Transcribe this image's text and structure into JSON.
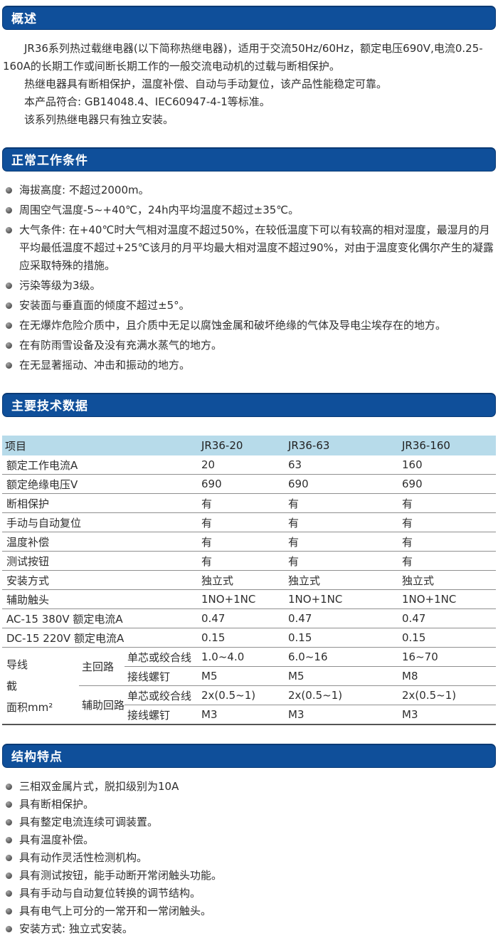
{
  "colors": {
    "banner_bg": "#0f4f9a",
    "banner_border": "#0a3a75",
    "banner_text": "#ffffff",
    "table_header_bg": "#b7dbea",
    "row_border": "#8f8f8f",
    "body_text": "#2e2e2e"
  },
  "sections": {
    "overview": {
      "title": "概述",
      "paragraphs": [
        "JR36系列热过载继电器(以下简称热继电器)，适用于交流50Hz/60Hz，额定电压690V,电流0.25-160A的长期工作或间断长期工作的一般交流电动机的过载与断相保护。",
        "热继电器具有断相保护，温度补偿、自动与手动复位，该产品性能稳定可靠。",
        "本产品符合: GB14048.4、IEC60947-4-1等标准。",
        "该系列热继电器只有独立安装。"
      ]
    },
    "working_conditions": {
      "title": "正常工作条件",
      "bullets": [
        "海拔高度: 不超过2000m。",
        "周围空气温度-5~+40℃，24h内平均温度不超过±35℃。",
        "大气条件: 在+40℃时大气相对温度不超过50%，在较低温度下可以有较高的相对湿度，最湿月的月平均最低温度不超过+25℃该月的月平均最大相对温度不超过90%，对由于温度变化偶尔产生的凝露应采取特殊的措施。",
        "污染等级为3级。",
        "安装面与垂直面的倾度不超过±5°。",
        "在无爆炸危险介质中，且介质中无足以腐蚀金属和破坏绝缘的气体及导电尘埃存在的地方。",
        "在有防雨雪设备及没有充满水蒸气的地方。",
        "在无显著摇动、冲击和振动的地方。"
      ]
    },
    "technical_data": {
      "title": "主要技术数据",
      "table": {
        "columns": [
          "项目",
          "JR36-20",
          "JR36-63",
          "JR36-160"
        ],
        "rows": [
          {
            "label": "额定工作电流A",
            "values": [
              "20",
              "63",
              "160"
            ]
          },
          {
            "label": "额定绝缘电压V",
            "values": [
              "690",
              "690",
              "690"
            ]
          },
          {
            "label": "断相保护",
            "values": [
              "有",
              "有",
              "有"
            ]
          },
          {
            "label": "手动与自动复位",
            "values": [
              "有",
              "有",
              "有"
            ]
          },
          {
            "label": "温度补偿",
            "values": [
              "有",
              "有",
              "有"
            ]
          },
          {
            "label": "测试按钮",
            "values": [
              "有",
              "有",
              "有"
            ]
          },
          {
            "label": "安装方式",
            "values": [
              "独立式",
              "独立式",
              "独立式"
            ]
          },
          {
            "label": "辅助触头",
            "values": [
              "1NO+1NC",
              "1NO+1NC",
              "1NO+1NC"
            ]
          },
          {
            "label": "AC-15 380V 额定电流A",
            "values": [
              "0.47",
              "0.47",
              "0.47"
            ]
          },
          {
            "label": "DC-15 220V 额定电流A",
            "values": [
              "0.15",
              "0.15",
              "0.15"
            ]
          }
        ],
        "wire_section": {
          "label": "导线\n截\n面积mm²",
          "groups": [
            {
              "name": "主回路",
              "rows": [
                {
                  "label": "单芯或绞合线",
                  "values": [
                    "1.0~4.0",
                    "6.0~16",
                    "16~70"
                  ]
                },
                {
                  "label": "接线螺钉",
                  "values": [
                    "M5",
                    "M5",
                    "M8"
                  ]
                }
              ]
            },
            {
              "name": "辅助回路",
              "rows": [
                {
                  "label": "单芯或绞合线",
                  "values": [
                    "2x(0.5~1)",
                    "2x(0.5~1)",
                    "2x(0.5~1)"
                  ]
                },
                {
                  "label": "接线螺钉",
                  "values": [
                    "M3",
                    "M3",
                    "M3"
                  ]
                }
              ]
            }
          ]
        }
      }
    },
    "structure_features": {
      "title": "结构特点",
      "bullets": [
        "三相双金属片式，脱扣级别为10A",
        "具有断相保护。",
        "具有整定电流连续可调装置。",
        "具有温度补偿。",
        "具有动作灵活性检测机构。",
        "具有测试按钮，能手动断开常闭触头功能。",
        "具有手动与自动复位转换的调节结构。",
        "具有电气上可分的一常开和一常闭触头。",
        "安装方式: 独立式安装。"
      ]
    }
  }
}
